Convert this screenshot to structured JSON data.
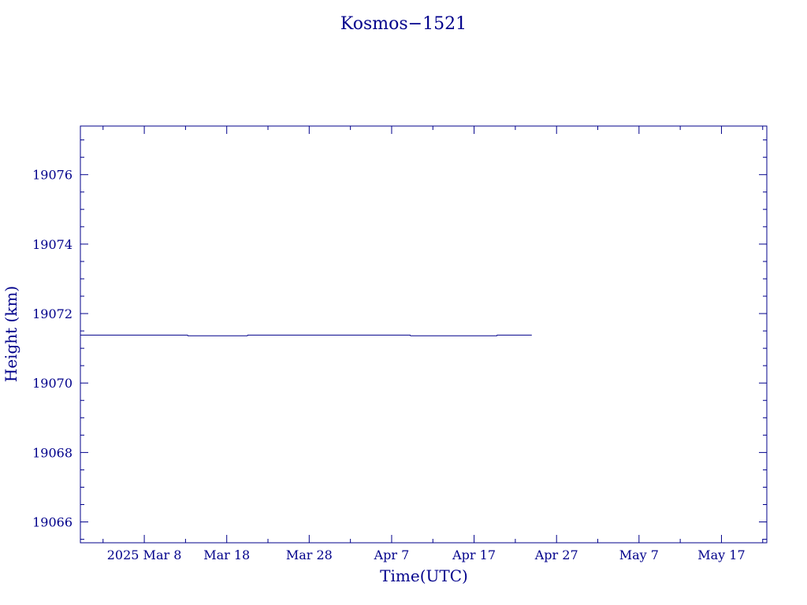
{
  "chart_data": {
    "type": "line",
    "title": "Kosmos−1521",
    "xlabel": "Time(UTC)",
    "ylabel": "Height (km)",
    "x_tick_labels": [
      "2025 Mar  8",
      "Mar 18",
      "Mar 28",
      "Apr  7",
      "Apr 17",
      "Apr 27",
      "May  7",
      "May 17"
    ],
    "x_tick_dates": [
      "2025-03-08",
      "2025-03-18",
      "2025-03-28",
      "2025-04-07",
      "2025-04-17",
      "2025-04-27",
      "2025-05-07",
      "2025-05-17"
    ],
    "xlim": [
      "2025-02-28T06:00",
      "2025-05-22T12:00"
    ],
    "y_ticks": [
      19066,
      19068,
      19070,
      19072,
      19074,
      19076
    ],
    "ylim": [
      19065.4,
      19077.4
    ],
    "grid": false,
    "series": [
      {
        "color": "#00008b",
        "x": [
          "2025-02-28T06:00",
          "2025-03-13T06:00",
          "2025-03-13T07:00",
          "2025-03-20T12:00",
          "2025-03-20T13:00",
          "2025-04-09T06:00",
          "2025-04-09T07:00",
          "2025-04-19T18:00",
          "2025-04-19T19:00",
          "2025-04-24T00:00"
        ],
        "y": [
          19071.38,
          19071.38,
          19071.36,
          19071.36,
          19071.38,
          19071.38,
          19071.36,
          19071.36,
          19071.38,
          19071.38
        ]
      }
    ]
  },
  "colors": {
    "ink": "#00008b",
    "background": "#ffffff"
  }
}
